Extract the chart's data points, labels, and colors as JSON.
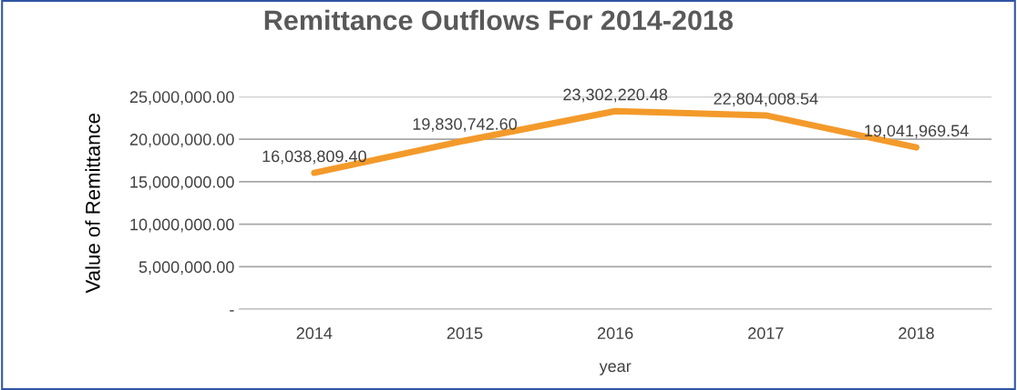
{
  "chart_data": {
    "type": "line",
    "title": "Remittance Outflows For 2014-2018",
    "xlabel": "year",
    "ylabel": "Value of Remittance",
    "categories": [
      "2014",
      "2015",
      "2016",
      "2017",
      "2018"
    ],
    "series": [
      {
        "color": "#f39a2b",
        "values": [
          16038809.4,
          19830742.6,
          23302220.48,
          22804008.54,
          19041969.54
        ],
        "value_labels": [
          "16,038,809.40",
          "19,830,742.60",
          "23,302,220.48",
          "22,804,008.54",
          "19,041,969.54"
        ]
      }
    ],
    "ylim": [
      0,
      25000000
    ],
    "yticks": [
      {
        "value": 0,
        "label": "-"
      },
      {
        "value": 5000000,
        "label": "5,000,000.00"
      },
      {
        "value": 10000000,
        "label": "10,000,000.00"
      },
      {
        "value": 15000000,
        "label": "15,000,000.00"
      },
      {
        "value": 20000000,
        "label": "20,000,000.00"
      },
      {
        "value": 25000000,
        "label": "25,000,000.00"
      }
    ],
    "grid": "y",
    "marker": "none",
    "line_style": "solid"
  }
}
